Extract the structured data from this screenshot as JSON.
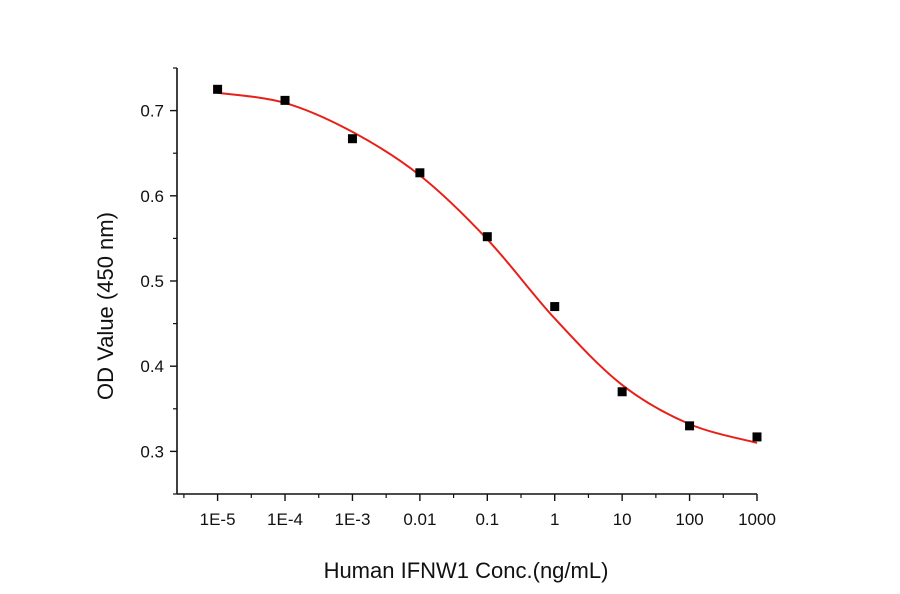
{
  "chart_data": {
    "type": "scatter",
    "xlabel": "Human IFNW1 Conc.(ng/mL)",
    "ylabel": "OD Value (450 nm)",
    "x_scale": "log",
    "x_ticks": [
      1e-05,
      0.0001,
      0.001,
      0.01,
      0.1,
      1,
      10,
      100,
      1000
    ],
    "x_tick_labels": [
      "1E-5",
      "1E-4",
      "1E-3",
      "0.01",
      "0.1",
      "1",
      "10",
      "100",
      "1000"
    ],
    "y_ticks": [
      0.3,
      0.4,
      0.5,
      0.6,
      0.7
    ],
    "y_tick_labels": [
      "0.3",
      "0.4",
      "0.5",
      "0.6",
      "0.7"
    ],
    "xlim": [
      2.5e-06,
      1000
    ],
    "ylim": [
      0.25,
      0.75
    ],
    "grid": false,
    "series": [
      {
        "marker": "square",
        "color": "#000000",
        "points": [
          {
            "x": 1e-05,
            "y": 0.725
          },
          {
            "x": 0.0001,
            "y": 0.712
          },
          {
            "x": 0.001,
            "y": 0.667
          },
          {
            "x": 0.01,
            "y": 0.627
          },
          {
            "x": 0.1,
            "y": 0.552
          },
          {
            "x": 1,
            "y": 0.47
          },
          {
            "x": 10,
            "y": 0.37
          },
          {
            "x": 100,
            "y": 0.33
          },
          {
            "x": 1000,
            "y": 0.317
          }
        ]
      },
      {
        "type": "line",
        "color": "#e8201a",
        "points": [
          {
            "x": 1e-05,
            "y": 0.721
          },
          {
            "x": 0.0001,
            "y": 0.709
          },
          {
            "x": 0.001,
            "y": 0.675
          },
          {
            "x": 0.01,
            "y": 0.624
          },
          {
            "x": 0.1,
            "y": 0.549
          },
          {
            "x": 1,
            "y": 0.456
          },
          {
            "x": 10,
            "y": 0.378
          },
          {
            "x": 100,
            "y": 0.332
          },
          {
            "x": 1000,
            "y": 0.31
          }
        ]
      }
    ]
  }
}
